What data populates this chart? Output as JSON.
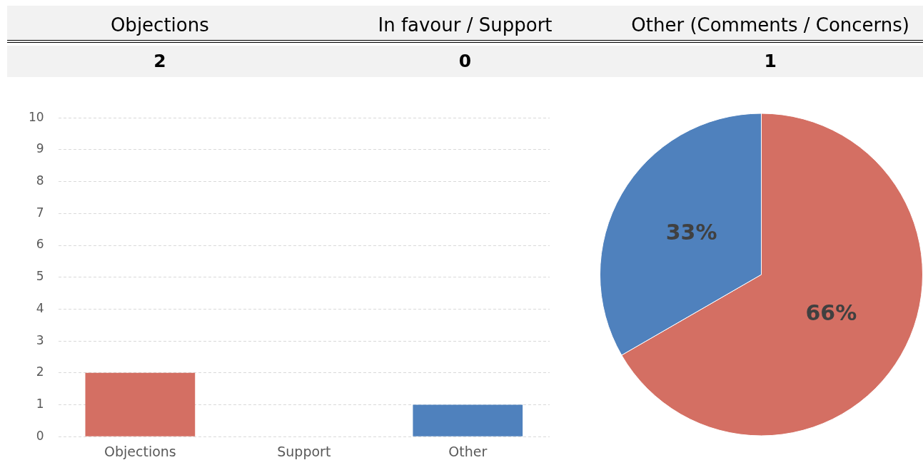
{
  "chart_data": [
    {
      "type": "other",
      "categories": [
        "Objections",
        "In favour / Support",
        "Other (Comments / Concerns)"
      ],
      "values": [
        2,
        0,
        1
      ],
      "data_labels": true
    },
    {
      "type": "bar",
      "categories": [
        "Objections",
        "Support",
        "Other"
      ],
      "values": [
        2,
        0,
        1
      ],
      "colors": [
        "#d46f63",
        "#4f81bd",
        "#4f81bd"
      ],
      "ylim": [
        0,
        10
      ],
      "yticks": [
        0,
        1,
        2,
        3,
        4,
        5,
        6,
        7,
        8,
        9,
        10
      ],
      "grid": "y"
    },
    {
      "type": "pie",
      "categories": [
        null,
        null
      ],
      "values": [
        66,
        33
      ],
      "colors": [
        "#d46f63",
        "#4f81bd"
      ],
      "value_labels": [
        "66%",
        "33%"
      ]
    }
  ]
}
